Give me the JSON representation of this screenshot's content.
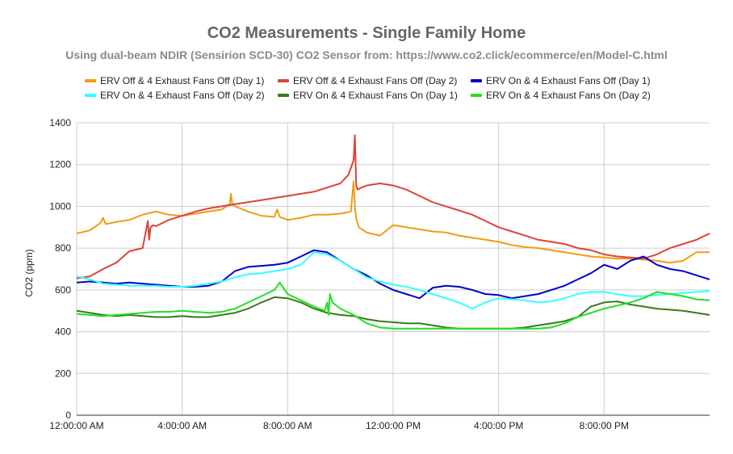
{
  "chart_data": {
    "type": "line",
    "title": "CO2 Measurements - Single Family Home",
    "subtitle": "Using dual-beam NDIR (Sensirion SCD-30) CO2 Sensor from: https://www.co2.click/ecommerce/en/Model-C.html",
    "xlabel": "",
    "ylabel": "CO2 (ppm)",
    "ylim": [
      0,
      1400
    ],
    "xlim_hours": [
      0,
      24
    ],
    "y_ticks": [
      "0",
      "200",
      "400",
      "600",
      "800",
      "1000",
      "1200",
      "1400"
    ],
    "x_ticks": [
      {
        "hour": 0,
        "label": "12:00:00 AM"
      },
      {
        "hour": 4,
        "label": "4:00:00 AM"
      },
      {
        "hour": 8,
        "label": "8:00:00 AM"
      },
      {
        "hour": 12,
        "label": "12:00:00 PM"
      },
      {
        "hour": 16,
        "label": "4:00:00 PM"
      },
      {
        "hour": 20,
        "label": "8:00:00 PM"
      }
    ],
    "grid": true,
    "legend_position": "top",
    "series": [
      {
        "name": "ERV Off & 4 Exhaust Fans Off (Day 1)",
        "color": "#f29b12",
        "x": [
          0,
          0.5,
          0.9,
          1.0,
          1.1,
          1.5,
          2,
          2.5,
          3,
          3.5,
          4,
          4.5,
          5,
          5.5,
          5.8,
          5.85,
          5.9,
          6.0,
          6.2,
          6.5,
          7,
          7.5,
          7.6,
          7.7,
          8,
          8.5,
          9,
          9.5,
          10,
          10.4,
          10.5,
          10.55,
          10.6,
          10.7,
          11,
          11.5,
          11.8,
          12,
          12.5,
          13,
          13.5,
          14,
          14.5,
          15,
          15.5,
          16,
          16.5,
          17,
          17.5,
          18,
          18.5,
          19,
          19.5,
          20,
          20.5,
          21,
          21.5,
          22,
          22.5,
          23,
          23.5,
          24
        ],
        "y": [
          870,
          885,
          920,
          945,
          915,
          925,
          935,
          960,
          975,
          960,
          955,
          965,
          975,
          985,
          1010,
          1060,
          1010,
          1000,
          990,
          975,
          955,
          950,
          985,
          950,
          935,
          945,
          960,
          960,
          965,
          975,
          1120,
          1000,
          940,
          900,
          875,
          860,
          890,
          910,
          900,
          890,
          880,
          875,
          860,
          850,
          840,
          830,
          815,
          805,
          800,
          790,
          780,
          770,
          760,
          755,
          750,
          750,
          745,
          740,
          730,
          740,
          780,
          780
        ]
      },
      {
        "name": "ERV Off & 4 Exhaust Fans Off (Day 2)",
        "color": "#dc4437",
        "x": [
          0,
          0.5,
          1,
          1.5,
          2,
          2.5,
          2.7,
          2.75,
          2.8,
          2.9,
          3,
          3.5,
          4,
          4.5,
          5,
          5.5,
          6,
          6.5,
          7,
          7.5,
          8,
          8.5,
          9,
          9.5,
          10,
          10.3,
          10.5,
          10.55,
          10.6,
          10.65,
          10.8,
          11,
          11.5,
          12,
          12.5,
          13,
          13.5,
          14,
          14.5,
          15,
          15.5,
          16,
          16.5,
          17,
          17.5,
          18,
          18.5,
          19,
          19.5,
          20,
          20.5,
          21,
          21.5,
          22,
          22.5,
          23,
          23.5,
          24
        ],
        "y": [
          655,
          665,
          700,
          730,
          785,
          800,
          930,
          840,
          900,
          910,
          905,
          935,
          955,
          975,
          990,
          1000,
          1010,
          1020,
          1030,
          1040,
          1050,
          1060,
          1070,
          1090,
          1110,
          1150,
          1220,
          1340,
          1100,
          1080,
          1090,
          1100,
          1110,
          1100,
          1080,
          1050,
          1020,
          1000,
          980,
          960,
          930,
          900,
          880,
          860,
          840,
          830,
          820,
          800,
          790,
          770,
          760,
          755,
          750,
          770,
          800,
          820,
          840,
          870
        ]
      },
      {
        "name": "ERV On & 4 Exhaust Fans Off (Day 1)",
        "color": "#0000cc",
        "x": [
          0,
          0.5,
          1,
          1.5,
          2,
          2.5,
          3,
          3.5,
          4,
          4.5,
          5,
          5.5,
          6,
          6.5,
          7,
          7.5,
          8,
          8.5,
          9,
          9.5,
          10,
          10.5,
          11,
          11.5,
          12,
          12.5,
          13,
          13.5,
          14,
          14.5,
          15,
          15.5,
          16,
          16.5,
          17,
          17.5,
          18,
          18.5,
          19,
          19.5,
          20,
          20.5,
          21,
          21.5,
          22,
          22.5,
          23,
          23.5,
          24
        ],
        "y": [
          635,
          640,
          635,
          630,
          635,
          630,
          625,
          620,
          615,
          615,
          620,
          640,
          690,
          710,
          715,
          720,
          730,
          760,
          790,
          780,
          740,
          700,
          670,
          630,
          600,
          580,
          560,
          610,
          620,
          615,
          600,
          580,
          575,
          560,
          570,
          580,
          600,
          620,
          650,
          680,
          720,
          700,
          740,
          760,
          720,
          700,
          690,
          670,
          650
        ]
      },
      {
        "name": "ERV On & 4 Exhaust Fans Off (Day 2)",
        "color": "#33ffff",
        "x": [
          0,
          0.5,
          1,
          1.5,
          2,
          2.5,
          3,
          3.5,
          4,
          4.5,
          5,
          5.5,
          6,
          6.5,
          7,
          7.5,
          8,
          8.5,
          9,
          9.5,
          10,
          10.5,
          11,
          11.5,
          12,
          12.5,
          13,
          13.5,
          14,
          14.5,
          15,
          15.5,
          16,
          16.5,
          17,
          17.5,
          18,
          18.5,
          19,
          19.5,
          20,
          20.5,
          21,
          21.5,
          22,
          22.5,
          23,
          23.5,
          24
        ],
        "y": [
          665,
          650,
          630,
          625,
          620,
          620,
          620,
          615,
          615,
          620,
          630,
          640,
          660,
          675,
          680,
          690,
          700,
          720,
          780,
          770,
          740,
          700,
          660,
          640,
          625,
          615,
          600,
          580,
          560,
          540,
          510,
          540,
          560,
          555,
          550,
          540,
          545,
          560,
          580,
          590,
          590,
          580,
          570,
          570,
          575,
          580,
          585,
          590,
          595
        ]
      },
      {
        "name": "ERV On & 4 Exhaust Fans On (Day 1)",
        "color": "#3a7a1c",
        "x": [
          0,
          0.5,
          1,
          1.5,
          2,
          2.5,
          3,
          3.5,
          4,
          4.5,
          5,
          5.5,
          6,
          6.5,
          7,
          7.5,
          8,
          8.5,
          9,
          9.5,
          10,
          10.5,
          11,
          11.5,
          12,
          12.5,
          13,
          13.5,
          14,
          14.5,
          15,
          15.5,
          16,
          16.5,
          17,
          17.5,
          18,
          18.5,
          19,
          19.5,
          20,
          20.5,
          21,
          21.5,
          22,
          22.5,
          23,
          23.5,
          24
        ],
        "y": [
          500,
          490,
          480,
          475,
          480,
          475,
          470,
          470,
          475,
          470,
          470,
          480,
          490,
          510,
          540,
          565,
          560,
          540,
          510,
          490,
          480,
          475,
          460,
          450,
          445,
          440,
          440,
          430,
          420,
          415,
          415,
          415,
          415,
          415,
          420,
          430,
          440,
          450,
          470,
          520,
          540,
          545,
          530,
          520,
          510,
          505,
          500,
          490,
          480
        ]
      },
      {
        "name": "ERV On & 4 Exhaust Fans On (Day 2)",
        "color": "#22e022",
        "x": [
          0,
          0.5,
          1,
          1.5,
          2,
          2.5,
          3,
          3.5,
          4,
          4.5,
          5,
          5.5,
          6,
          6.5,
          7,
          7.5,
          7.7,
          8,
          8.5,
          9,
          9.4,
          9.5,
          9.55,
          9.6,
          9.7,
          10,
          10.5,
          11,
          11.5,
          12,
          12.5,
          13,
          13.5,
          14,
          14.5,
          15,
          15.5,
          16,
          16.5,
          17,
          17.5,
          18,
          18.5,
          19,
          19.5,
          20,
          20.5,
          21,
          21.5,
          22,
          22.5,
          23,
          23.5,
          24
        ],
        "y": [
          485,
          480,
          475,
          480,
          485,
          490,
          495,
          495,
          500,
          495,
          490,
          495,
          510,
          540,
          570,
          600,
          635,
          580,
          550,
          520,
          500,
          540,
          480,
          580,
          540,
          510,
          480,
          440,
          420,
          415,
          415,
          415,
          415,
          415,
          415,
          415,
          415,
          415,
          415,
          415,
          415,
          420,
          440,
          470,
          490,
          510,
          525,
          540,
          560,
          590,
          580,
          570,
          555,
          550
        ]
      }
    ]
  }
}
